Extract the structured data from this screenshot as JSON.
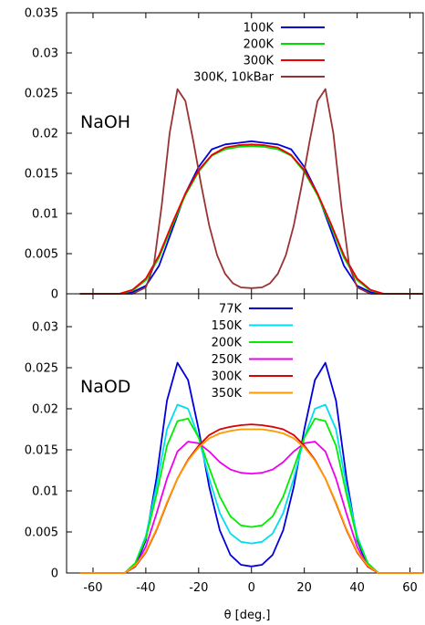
{
  "chart_data": [
    {
      "type": "line",
      "panel_label": "NaOH",
      "xlim": [
        -70,
        65
      ],
      "ylim": [
        0,
        0.035
      ],
      "yticks": [
        "0",
        "0.005",
        "0.01",
        "0.015",
        "0.02",
        "0.025",
        "0.03",
        "0.035"
      ],
      "ytick_values": [
        0,
        0.005,
        0.01,
        0.015,
        0.02,
        0.025,
        0.03,
        0.035
      ],
      "legend_position": "top-center",
      "series": [
        {
          "name": "100K",
          "color": "#0000dd",
          "x": [
            -65,
            -50,
            -45,
            -40,
            -35,
            -30,
            -25,
            -20,
            -15,
            -10,
            -5,
            0,
            5,
            10,
            15,
            20,
            25,
            30,
            35,
            40,
            45,
            50,
            65
          ],
          "y": [
            0,
            0,
            0.0002,
            0.001,
            0.0035,
            0.008,
            0.0125,
            0.0158,
            0.018,
            0.0186,
            0.0188,
            0.019,
            0.0188,
            0.0186,
            0.018,
            0.0158,
            0.0125,
            0.008,
            0.0035,
            0.001,
            0.0002,
            0,
            0
          ]
        },
        {
          "name": "200K",
          "color": "#00dd00",
          "x": [
            -65,
            -50,
            -45,
            -40,
            -35,
            -30,
            -25,
            -20,
            -15,
            -10,
            -5,
            0,
            5,
            10,
            15,
            20,
            25,
            30,
            35,
            40,
            45,
            50,
            65
          ],
          "y": [
            0,
            0,
            0.0004,
            0.0017,
            0.0045,
            0.0085,
            0.0123,
            0.0152,
            0.0172,
            0.018,
            0.0183,
            0.0184,
            0.0183,
            0.018,
            0.0172,
            0.0152,
            0.0123,
            0.0085,
            0.0045,
            0.0017,
            0.0004,
            0,
            0
          ]
        },
        {
          "name": "300K",
          "color": "#ee0000",
          "x": [
            -65,
            -50,
            -45,
            -40,
            -35,
            -30,
            -25,
            -20,
            -15,
            -10,
            -5,
            0,
            5,
            10,
            15,
            20,
            25,
            30,
            35,
            40,
            45,
            50,
            65
          ],
          "y": [
            0,
            0,
            0.0005,
            0.0019,
            0.0048,
            0.0088,
            0.0125,
            0.0154,
            0.0173,
            0.0182,
            0.0185,
            0.0186,
            0.0185,
            0.0182,
            0.0173,
            0.0154,
            0.0125,
            0.0088,
            0.0048,
            0.0019,
            0.0005,
            0,
            0
          ]
        },
        {
          "name": "300K, 10kBar",
          "color": "#993333",
          "x": [
            -65,
            -45,
            -40,
            -37,
            -34,
            -31,
            -28,
            -25,
            -22,
            -19,
            -16,
            -13,
            -10,
            -7,
            -4,
            0,
            4,
            7,
            10,
            13,
            16,
            19,
            22,
            25,
            28,
            31,
            34,
            37,
            40,
            45,
            65
          ],
          "y": [
            0,
            0,
            0.0008,
            0.0035,
            0.011,
            0.02,
            0.0255,
            0.024,
            0.019,
            0.0135,
            0.0085,
            0.0048,
            0.0025,
            0.0013,
            0.0008,
            0.0007,
            0.0008,
            0.0013,
            0.0025,
            0.0048,
            0.0085,
            0.0135,
            0.019,
            0.024,
            0.0255,
            0.02,
            0.011,
            0.0035,
            0.0008,
            0,
            0
          ]
        }
      ]
    },
    {
      "type": "line",
      "panel_label": "NaOD",
      "xlim": [
        -70,
        65
      ],
      "ylim": [
        0,
        0.034
      ],
      "yticks": [
        "0",
        "0.005",
        "0.01",
        "0.015",
        "0.02",
        "0.025",
        "0.03"
      ],
      "ytick_values": [
        0,
        0.005,
        0.01,
        0.015,
        0.02,
        0.025,
        0.03
      ],
      "xticks": [
        "-60",
        "-40",
        "-20",
        "0",
        "20",
        "40",
        "60"
      ],
      "xtick_values": [
        -60,
        -40,
        -20,
        0,
        20,
        40,
        60
      ],
      "xlabel": "θ [deg.]",
      "legend_position": "top-center",
      "series": [
        {
          "name": "77K",
          "color": "#0000dd",
          "x": [
            -65,
            -48,
            -44,
            -40,
            -36,
            -32,
            -28,
            -24,
            -20,
            -16,
            -12,
            -8,
            -4,
            0,
            4,
            8,
            12,
            16,
            20,
            24,
            28,
            32,
            36,
            40,
            44,
            48,
            65
          ],
          "y": [
            0,
            0,
            0.0008,
            0.004,
            0.0115,
            0.021,
            0.0256,
            0.0235,
            0.0175,
            0.0105,
            0.0052,
            0.0022,
            0.001,
            0.0008,
            0.001,
            0.0022,
            0.0052,
            0.0105,
            0.0175,
            0.0235,
            0.0256,
            0.021,
            0.0115,
            0.004,
            0.0008,
            0,
            0
          ]
        },
        {
          "name": "150K",
          "color": "#00ddee",
          "x": [
            -65,
            -48,
            -44,
            -40,
            -36,
            -32,
            -28,
            -24,
            -20,
            -16,
            -12,
            -8,
            -4,
            0,
            4,
            8,
            12,
            16,
            20,
            24,
            28,
            32,
            36,
            40,
            44,
            48,
            65
          ],
          "y": [
            0,
            0,
            0.0012,
            0.0045,
            0.0105,
            0.0175,
            0.0205,
            0.02,
            0.0165,
            0.0115,
            0.0073,
            0.0048,
            0.0038,
            0.0036,
            0.0038,
            0.0048,
            0.0073,
            0.0115,
            0.0165,
            0.02,
            0.0205,
            0.0175,
            0.0105,
            0.0045,
            0.0012,
            0,
            0
          ]
        },
        {
          "name": "200K",
          "color": "#00ee00",
          "x": [
            -65,
            -48,
            -44,
            -40,
            -36,
            -32,
            -28,
            -24,
            -20,
            -16,
            -12,
            -8,
            -4,
            0,
            4,
            8,
            12,
            16,
            20,
            24,
            28,
            32,
            36,
            40,
            44,
            48,
            65
          ],
          "y": [
            0,
            0,
            0.0012,
            0.0042,
            0.0095,
            0.0155,
            0.0185,
            0.0188,
            0.0165,
            0.0128,
            0.0093,
            0.0069,
            0.0058,
            0.0056,
            0.0058,
            0.0069,
            0.0093,
            0.0128,
            0.0165,
            0.0188,
            0.0185,
            0.0155,
            0.0095,
            0.0042,
            0.0012,
            0,
            0
          ]
        },
        {
          "name": "250K",
          "color": "#ee00ee",
          "x": [
            -65,
            -48,
            -44,
            -40,
            -36,
            -32,
            -28,
            -24,
            -20,
            -16,
            -12,
            -8,
            -4,
            0,
            4,
            8,
            12,
            16,
            20,
            24,
            28,
            32,
            36,
            40,
            44,
            48,
            65
          ],
          "y": [
            0,
            0,
            0.0008,
            0.0032,
            0.0072,
            0.0115,
            0.0148,
            0.016,
            0.0158,
            0.0148,
            0.0135,
            0.0126,
            0.0122,
            0.0121,
            0.0122,
            0.0126,
            0.0135,
            0.0148,
            0.0158,
            0.016,
            0.0148,
            0.0115,
            0.0072,
            0.0032,
            0.0008,
            0,
            0
          ]
        },
        {
          "name": "300K",
          "color": "#dd0000",
          "x": [
            -65,
            -48,
            -44,
            -40,
            -36,
            -32,
            -28,
            -24,
            -20,
            -16,
            -12,
            -8,
            -4,
            0,
            4,
            8,
            12,
            16,
            20,
            24,
            28,
            32,
            36,
            40,
            44,
            48,
            65
          ],
          "y": [
            0,
            0,
            0.0008,
            0.0025,
            0.0052,
            0.0085,
            0.0115,
            0.0138,
            0.0155,
            0.0168,
            0.0175,
            0.0178,
            0.018,
            0.0181,
            0.018,
            0.0178,
            0.0175,
            0.0168,
            0.0155,
            0.0138,
            0.0115,
            0.0085,
            0.0052,
            0.0025,
            0.0008,
            0,
            0
          ]
        },
        {
          "name": "350K",
          "color": "#ff9900",
          "x": [
            -65,
            -48,
            -44,
            -40,
            -36,
            -32,
            -28,
            -24,
            -20,
            -16,
            -12,
            -8,
            -4,
            0,
            4,
            8,
            12,
            16,
            20,
            24,
            28,
            32,
            36,
            40,
            44,
            48,
            65
          ],
          "y": [
            0,
            0,
            0.0009,
            0.0026,
            0.0053,
            0.0086,
            0.0115,
            0.0137,
            0.0153,
            0.0164,
            0.017,
            0.0173,
            0.0175,
            0.0175,
            0.0175,
            0.0173,
            0.017,
            0.0164,
            0.0153,
            0.0137,
            0.0115,
            0.0086,
            0.0053,
            0.0026,
            0.0009,
            0,
            0
          ]
        }
      ]
    }
  ]
}
